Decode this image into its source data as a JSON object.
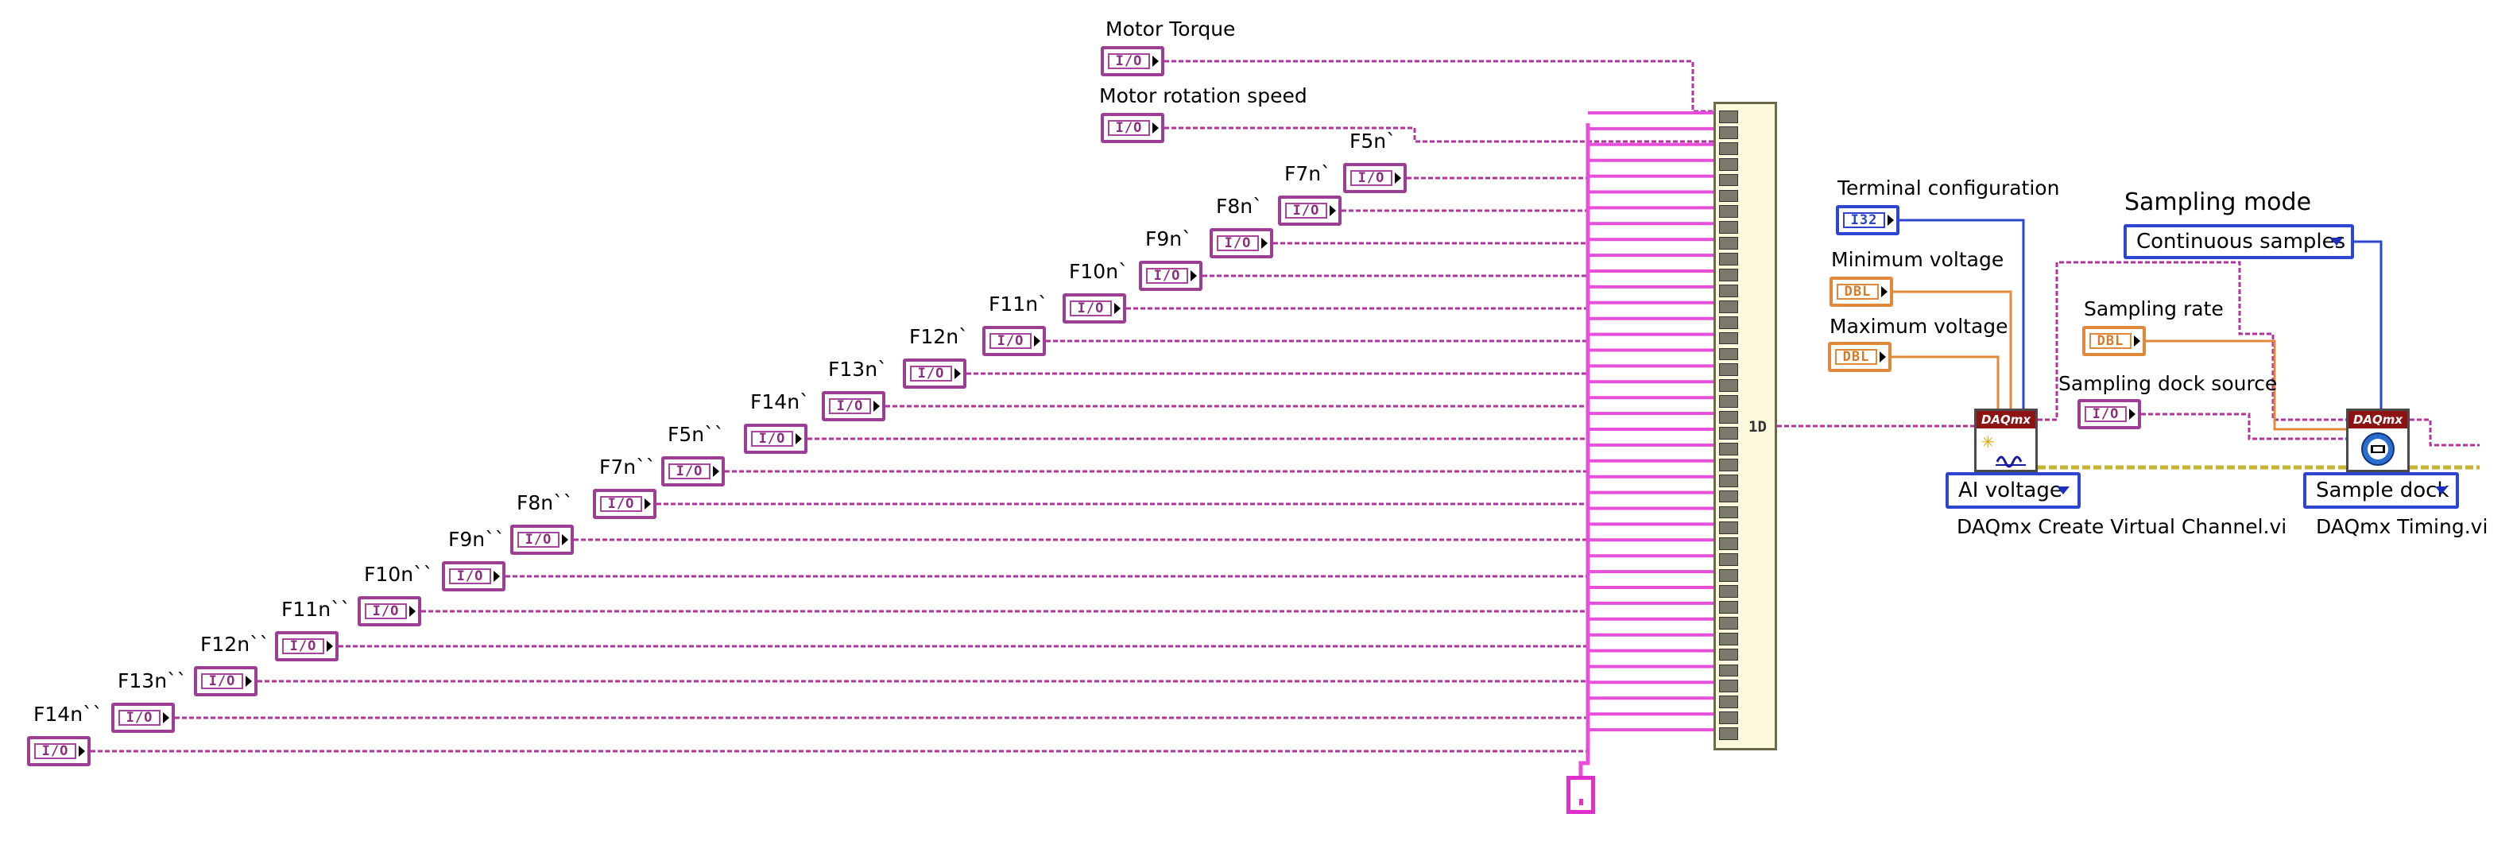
{
  "colors": {
    "dynamic_wire": "#b2329e",
    "bundle_wire": "#e54fd9",
    "int_wire": "#2e45d0",
    "dbl_wire": "#e1893a",
    "error_wire": "#c8b433",
    "vi_header": "#8e1414"
  },
  "labels": {
    "motor_torque": "Motor Torque",
    "motor_rotation_speed": "Motor rotation speed",
    "terminal_configuration": "Terminal configuration",
    "minimum_voltage": "Minimum voltage",
    "maximum_voltage": "Maximum voltage",
    "sampling_mode": "Sampling mode",
    "sampling_rate": "Sampling rate",
    "sampling_clock_source": "Sampling dock source"
  },
  "channels": [
    {
      "label": "F5n`"
    },
    {
      "label": "F7n`"
    },
    {
      "label": "F8n`"
    },
    {
      "label": "F9n`"
    },
    {
      "label": "F10n`"
    },
    {
      "label": "F11n`"
    },
    {
      "label": "F12n`"
    },
    {
      "label": "F13n`"
    },
    {
      "label": "F14n`"
    },
    {
      "label": "F5n``"
    },
    {
      "label": "F7n``"
    },
    {
      "label": "F8n``"
    },
    {
      "label": "F9n``"
    },
    {
      "label": "F10n``"
    },
    {
      "label": "F11n``"
    },
    {
      "label": "F12n``"
    },
    {
      "label": "F13n``"
    },
    {
      "label": "F14n``"
    }
  ],
  "terminals": {
    "io": "I/O",
    "i32": "I32",
    "dbl": "DBL"
  },
  "build_array": {
    "output_label": "1D"
  },
  "rings": {
    "ai_voltage": "AI voltage",
    "sample_clock": "Sample dock",
    "continuous_samples": "Continuous samples"
  },
  "vis": {
    "header": "DAQmx",
    "create_channel": "DAQmx Create Virtual Channel.vi",
    "timing": "DAQmx Timing.vi"
  },
  "icons": {
    "create_channel": "waveform-star-icon",
    "timing": "clock-icon",
    "dropdown": "chevron-down-icon"
  }
}
